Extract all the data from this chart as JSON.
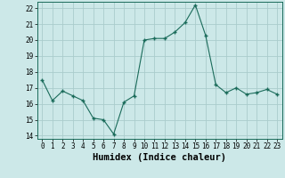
{
  "xlabel": "Humidex (Indice chaleur)",
  "ylabel": "",
  "x": [
    0,
    1,
    2,
    3,
    4,
    5,
    6,
    7,
    8,
    9,
    10,
    11,
    12,
    13,
    14,
    15,
    16,
    17,
    18,
    19,
    20,
    21,
    22,
    23
  ],
  "y": [
    17.5,
    16.2,
    16.8,
    16.5,
    16.2,
    15.1,
    15.0,
    14.1,
    16.1,
    16.5,
    20.0,
    20.1,
    20.1,
    20.5,
    21.1,
    22.2,
    20.3,
    17.2,
    16.7,
    17.0,
    16.6,
    16.7,
    16.9,
    16.6
  ],
  "ylim": [
    13.8,
    22.4
  ],
  "xlim": [
    -0.5,
    23.5
  ],
  "line_color": "#1a6b5a",
  "marker": "+",
  "marker_size": 3.5,
  "bg_color": "#cce8e8",
  "grid_color": "#aacccc",
  "yticks": [
    14,
    15,
    16,
    17,
    18,
    19,
    20,
    21,
    22
  ],
  "xticks": [
    0,
    1,
    2,
    3,
    4,
    5,
    6,
    7,
    8,
    9,
    10,
    11,
    12,
    13,
    14,
    15,
    16,
    17,
    18,
    19,
    20,
    21,
    22,
    23
  ],
  "tick_fontsize": 5.5,
  "xlabel_fontsize": 7.5,
  "linewidth": 0.8,
  "markeredgewidth": 1.0
}
